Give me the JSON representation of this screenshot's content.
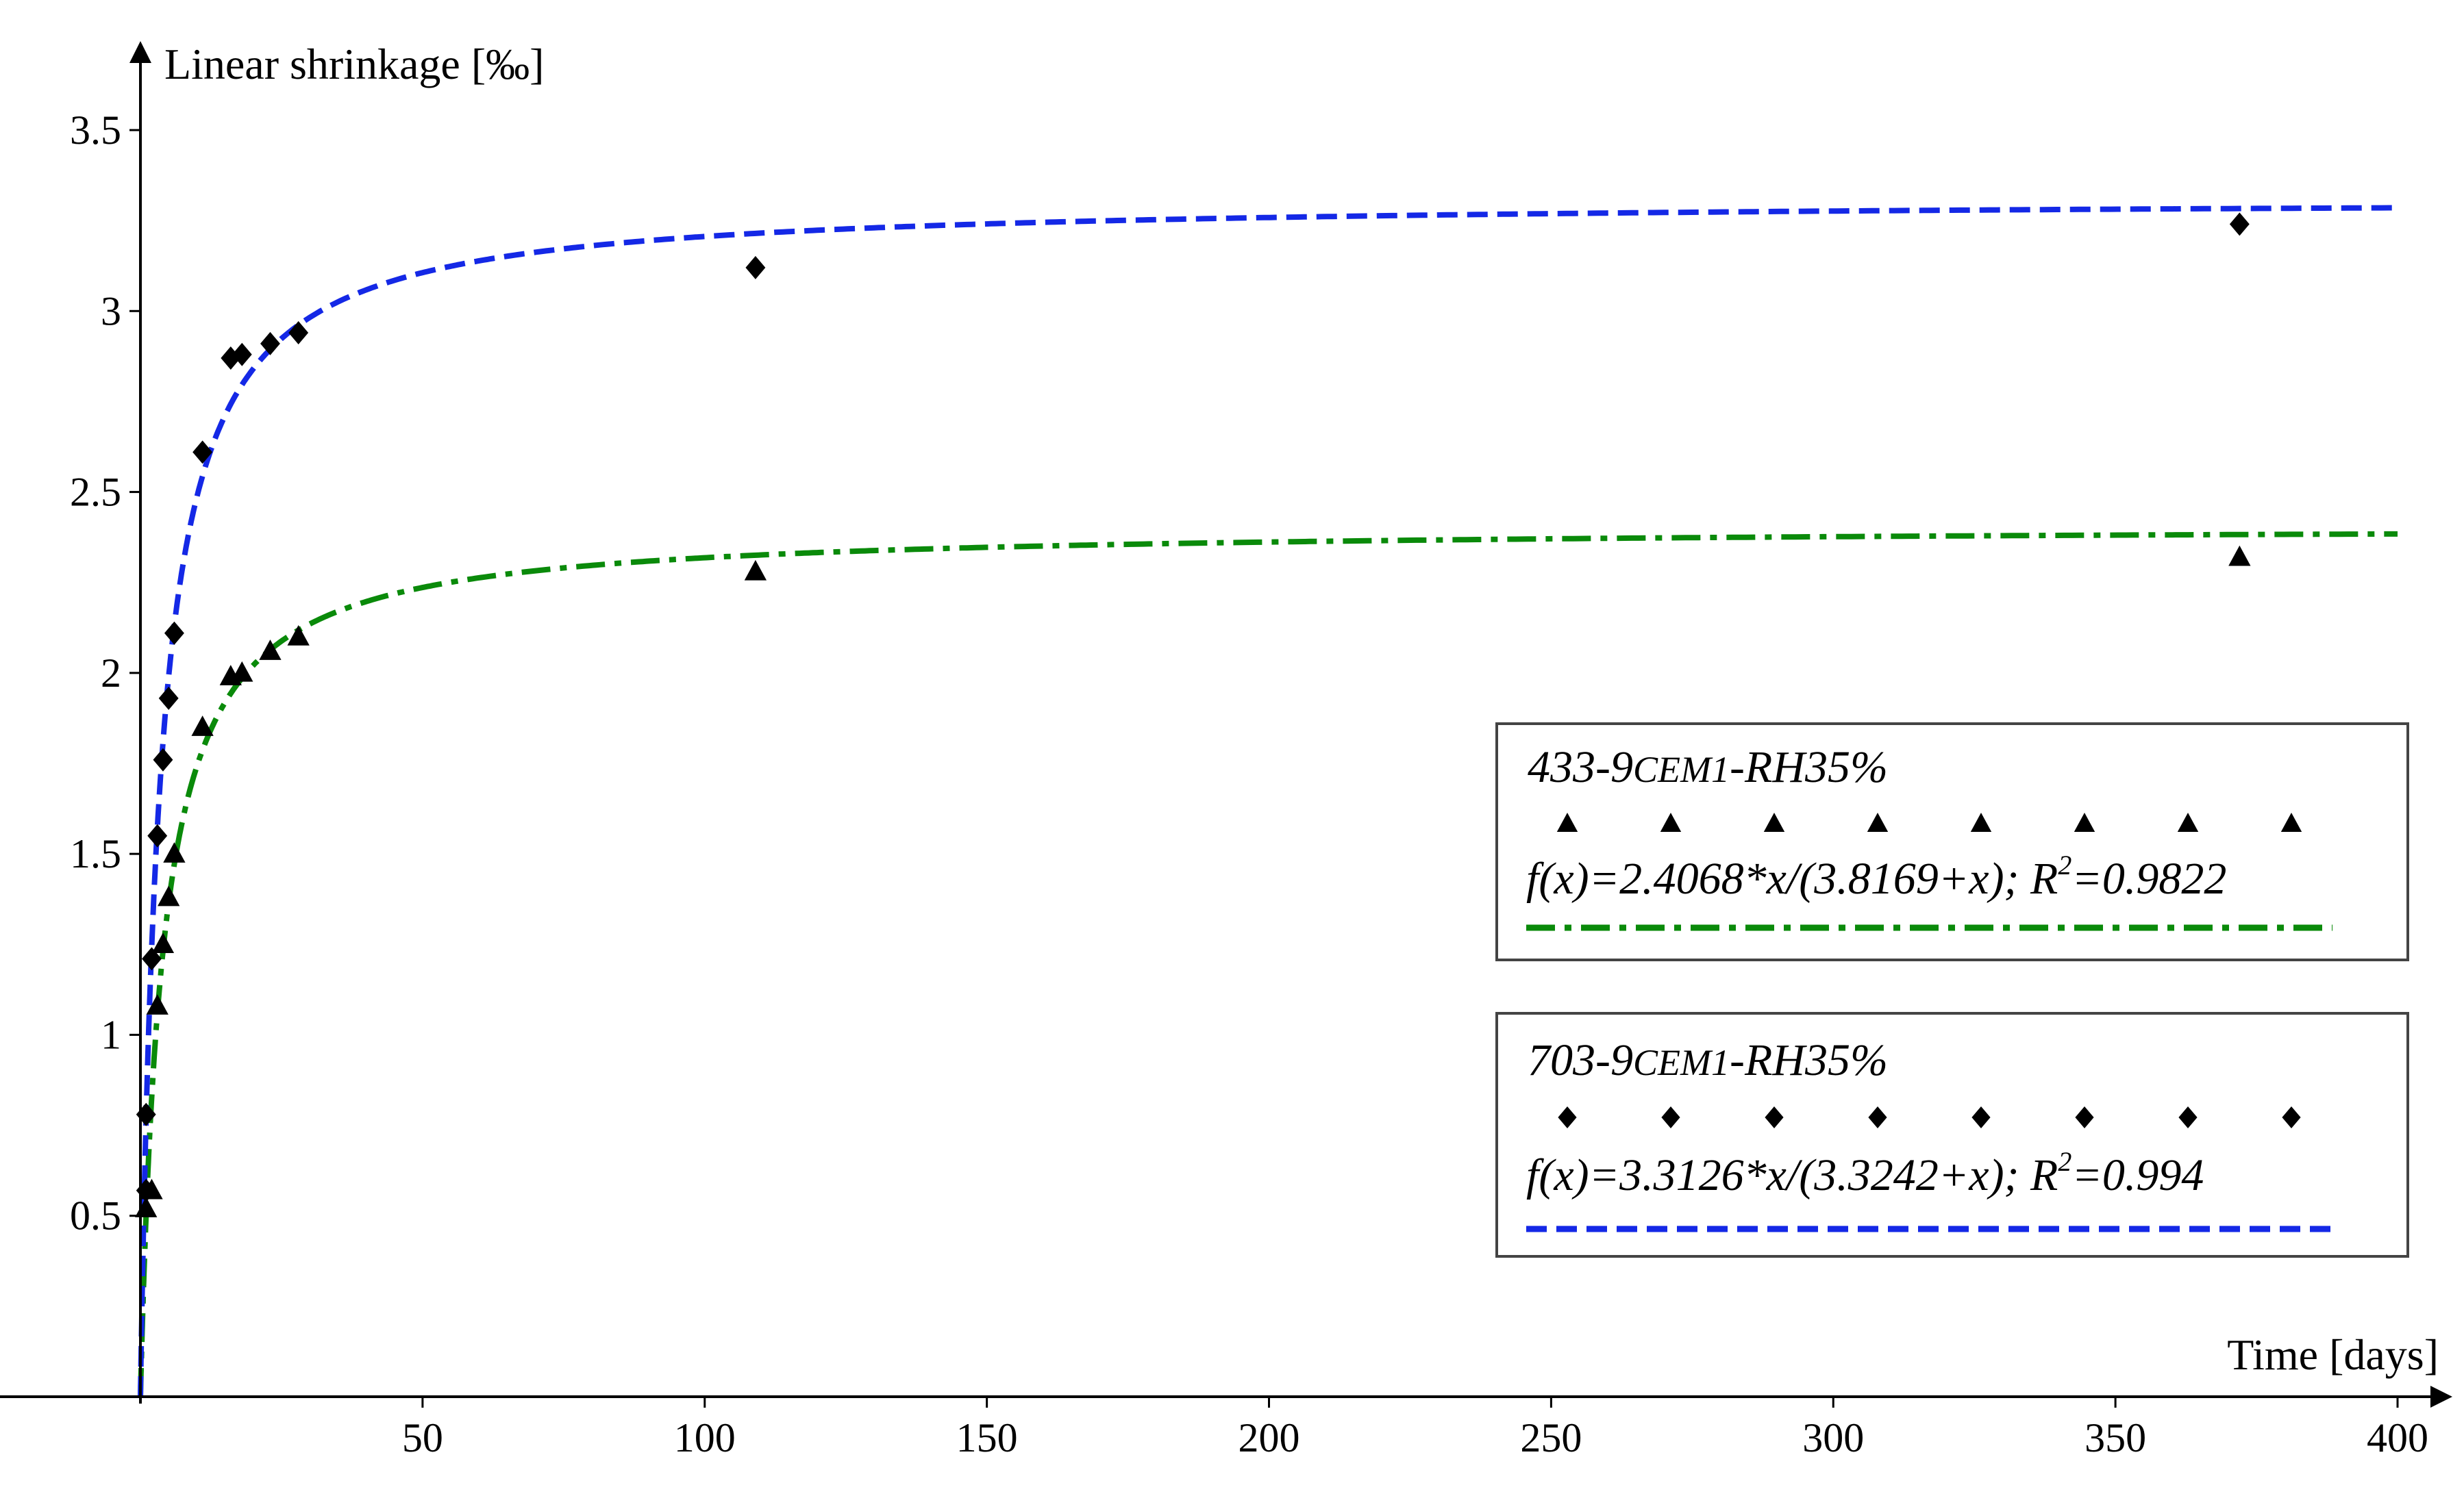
{
  "chart_data": {
    "type": "scatter",
    "title": "",
    "xlabel": "Time [days]",
    "ylabel": "Linear shrinkage [‰]",
    "xlim": [
      0,
      400
    ],
    "ylim": [
      0,
      3.5
    ],
    "xticks": [
      "50",
      "100",
      "150",
      "200",
      "250",
      "300",
      "350",
      "400"
    ],
    "yticks": [
      "0.5",
      "1",
      "1.5",
      "2",
      "2.5",
      "3",
      "3.5"
    ],
    "grid": false,
    "legend_placement": "right",
    "series": [
      {
        "name": "433-9CEM1-RH35%",
        "marker": "triangle",
        "color": "#000000",
        "points": [
          {
            "x": 1,
            "y": 0.52
          },
          {
            "x": 2,
            "y": 0.57
          },
          {
            "x": 3,
            "y": 1.08
          },
          {
            "x": 4,
            "y": 1.25
          },
          {
            "x": 5,
            "y": 1.38
          },
          {
            "x": 6,
            "y": 1.5
          },
          {
            "x": 11,
            "y": 1.85
          },
          {
            "x": 16,
            "y": 1.99
          },
          {
            "x": 18,
            "y": 2.0
          },
          {
            "x": 23,
            "y": 2.06
          },
          {
            "x": 28,
            "y": 2.1
          },
          {
            "x": 109,
            "y": 2.28
          },
          {
            "x": 372,
            "y": 2.32
          }
        ]
      },
      {
        "name": "703-9CEM1-RH35%",
        "marker": "diamond",
        "color": "#000000",
        "points": [
          {
            "x": 1,
            "y": 0.57
          },
          {
            "x": 1,
            "y": 0.78
          },
          {
            "x": 2,
            "y": 1.21
          },
          {
            "x": 3,
            "y": 1.55
          },
          {
            "x": 4,
            "y": 1.76
          },
          {
            "x": 5,
            "y": 1.93
          },
          {
            "x": 6,
            "y": 2.11
          },
          {
            "x": 11,
            "y": 2.61
          },
          {
            "x": 16,
            "y": 2.87
          },
          {
            "x": 18,
            "y": 2.88
          },
          {
            "x": 23,
            "y": 2.91
          },
          {
            "x": 28,
            "y": 2.94
          },
          {
            "x": 109,
            "y": 3.12
          },
          {
            "x": 372,
            "y": 3.24
          }
        ]
      }
    ],
    "fits": [
      {
        "label": "f(x)=2.4068*x/(3.8169+x); R²=0.9822",
        "a": 2.4068,
        "b": 3.8169,
        "color": "#0a8a0a",
        "style": "dash-dot"
      },
      {
        "label": "f(x)=3.3126*x/(3.3242+x); R²=0.994",
        "a": 3.3126,
        "b": 3.3242,
        "color": "#1428e6",
        "style": "dash"
      }
    ],
    "legend": {
      "entries": [
        {
          "title_a": "433-9",
          "title_b": "CEM1",
          "title_c": "-RH35%",
          "eq_main": "f(x)=2.4068*x/(3.8169+x); R",
          "eq_sup": "2",
          "eq_tail": "=0.9822"
        },
        {
          "title_a": "703-9",
          "title_b": "CEM1",
          "title_c": "-RH35%",
          "eq_main": "f(x)=3.3126*x/(3.3242+x); R",
          "eq_sup": "2",
          "eq_tail": "=0.994"
        }
      ]
    }
  }
}
